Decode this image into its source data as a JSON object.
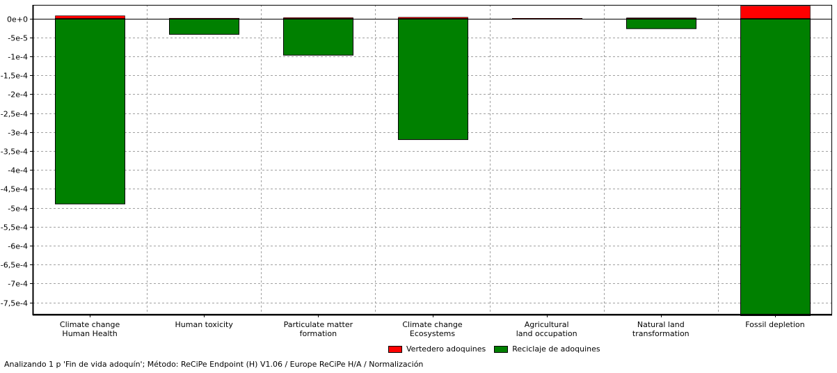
{
  "chart_data": {
    "type": "bar",
    "stacked": true,
    "categories": [
      [
        "Climate change",
        "Human Health"
      ],
      [
        "Human toxicity"
      ],
      [
        "Particulate matter",
        "formation"
      ],
      [
        "Climate change",
        "Ecosystems"
      ],
      [
        "Agricultural",
        "land occupation"
      ],
      [
        "Natural land",
        "transformation"
      ],
      [
        "Fossil depletion"
      ]
    ],
    "series": [
      {
        "name": "Vertedero adoquines",
        "color": "#ff0000",
        "values": [
          7e-06,
          5e-07,
          2e-06,
          3e-06,
          3e-07,
          1.5e-06,
          3.3e-05
        ]
      },
      {
        "name": "Reciclaje de adoquines",
        "color": "#008000",
        "values": [
          -0.00049,
          -4.2e-05,
          -9.7e-05,
          -0.00032,
          -1e-06,
          -2.7e-05,
          -0.000785
        ]
      }
    ],
    "ylim": [
      -0.000785,
      3.3e-05
    ],
    "yticks": [
      0,
      -5e-05,
      -0.0001,
      -0.00015,
      -0.0002,
      -0.00025,
      -0.0003,
      -0.00035,
      -0.0004,
      -0.00045,
      -0.0005,
      -0.00055,
      -0.0006,
      -0.00065,
      -0.0007,
      -0.00075
    ],
    "ytick_labels": [
      "0e+0",
      "-5e-5",
      "-1e-4",
      "-1,5e-4",
      "-2e-4",
      "-2,5e-4",
      "-3e-4",
      "-3,5e-4",
      "-4e-4",
      "-4,5e-4",
      "-5e-4",
      "-5,5e-4",
      "-6e-4",
      "-6,5e-4",
      "-7e-4",
      "-7,5e-4"
    ],
    "grid": true,
    "legend_position": "bottom-center",
    "title": "",
    "xlabel": "",
    "ylabel": ""
  },
  "legend": {
    "items": [
      {
        "label": "Vertedero adoquines",
        "color": "#ff0000"
      },
      {
        "label": "Reciclaje de adoquines",
        "color": "#008000"
      }
    ]
  },
  "status": {
    "text": "Analizando 1 p 'Fin de vida adoquín';  Método: ReCiPe Endpoint (H) V1.06 / Europe ReCiPe H/A / Normalización"
  }
}
